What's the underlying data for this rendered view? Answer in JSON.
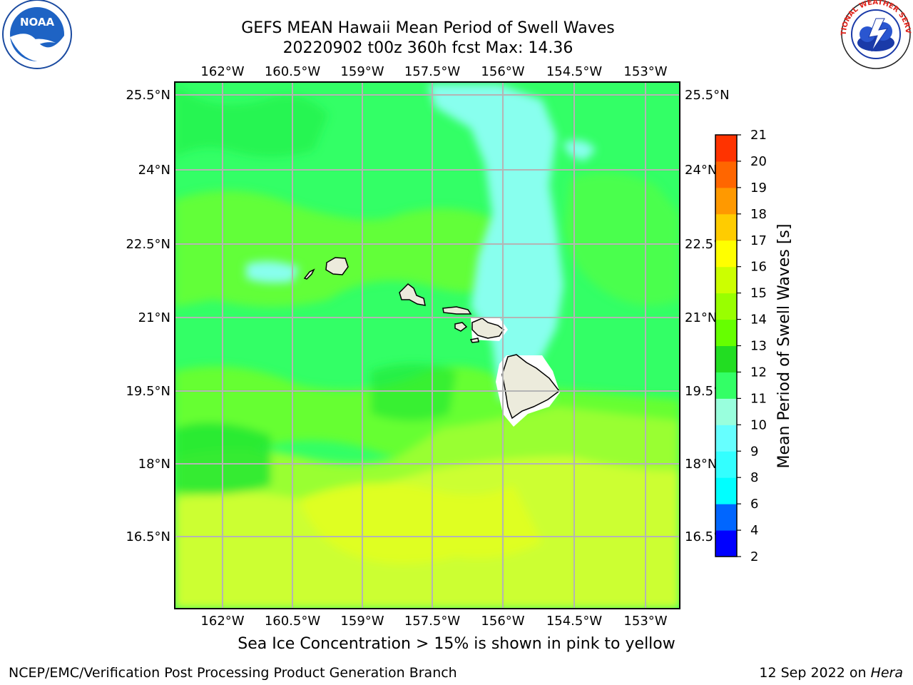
{
  "header": {
    "title_line1": "GEFS MEAN Hawaii Mean Period of Swell Waves",
    "title_line2": "20220902 t00z 360h fcst   Max: 14.36"
  },
  "logos": {
    "left": "noaa-logo",
    "right": "national-weather-service-logo",
    "right_text": "NATIONAL WEATHER SERVICE"
  },
  "map": {
    "lon_labels": [
      "162°W",
      "160.5°W",
      "159°W",
      "157.5°W",
      "156°W",
      "154.5°W",
      "153°W"
    ],
    "lat_labels": [
      "25.5°N",
      "24°N",
      "22.5°N",
      "21°N",
      "19.5°N",
      "18°N",
      "16.5°N"
    ],
    "colors": {
      "north": "#33ff66",
      "mid": "#66ff33",
      "south": "#ccff33",
      "dark_band": "#1aee33",
      "light_band": "#99ff66",
      "cyan_plume": "#88ffee",
      "island_fill": "#ecebdc",
      "grid": "#b4b4b4"
    }
  },
  "colorbar": {
    "label": "Mean Period of Swell Waves [s]",
    "ticks": [
      "2",
      "4",
      "6",
      "8",
      "9",
      "10",
      "11",
      "12",
      "13",
      "14",
      "15",
      "16",
      "17",
      "18",
      "19",
      "20",
      "21"
    ],
    "colors": [
      "#0000ff",
      "#0066ff",
      "#00ffff",
      "#33ffff",
      "#66ffff",
      "#99ffdd",
      "#33ff66",
      "#22dd22",
      "#66ff00",
      "#99ff00",
      "#ccff00",
      "#ffff00",
      "#ffcc00",
      "#ff9900",
      "#ff6600",
      "#ff3300",
      "#ff0000"
    ]
  },
  "footnote": "Sea Ice Concentration > 15% is shown in pink to yellow",
  "footer": {
    "left": "NCEP/EMC/Verification Post Processing Product Generation Branch",
    "right_date": "12 Sep 2022 on ",
    "right_host": "Hera"
  }
}
